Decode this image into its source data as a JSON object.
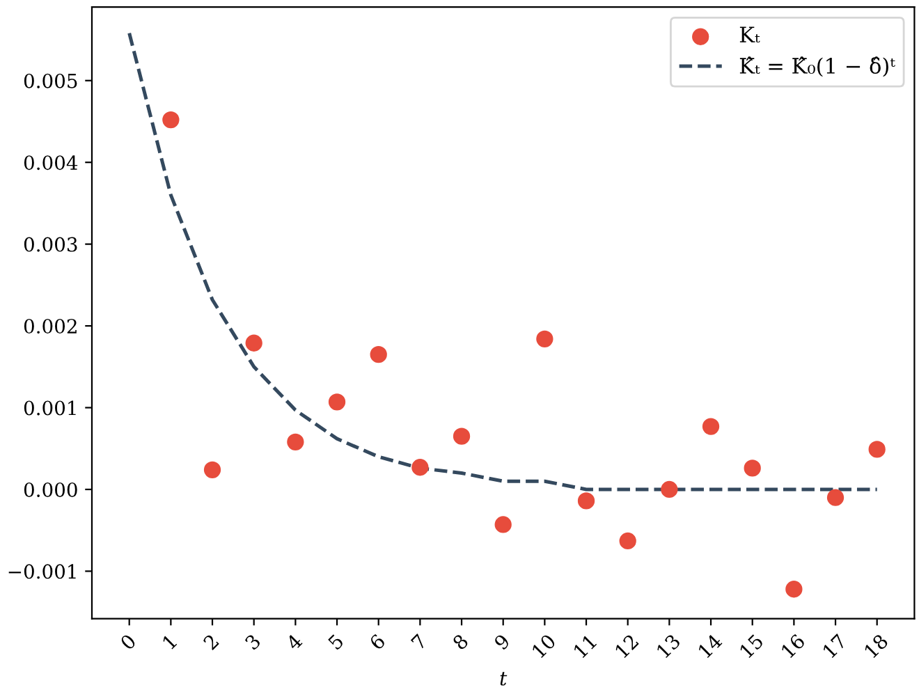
{
  "chart_data": {
    "type": "scatter",
    "xlabel": "t",
    "x": [
      1,
      2,
      3,
      4,
      5,
      6,
      7,
      8,
      9,
      10,
      11,
      12,
      13,
      14,
      15,
      16,
      17,
      18
    ],
    "series": [
      {
        "name": "Kₜ",
        "color": "#e74c3c",
        "marker": "circle",
        "values": [
          0.00452,
          0.00024,
          0.00179,
          0.00058,
          0.00107,
          0.00165,
          0.00027,
          0.00065,
          -0.00043,
          0.00184,
          -0.00014,
          -0.00063,
          0.0,
          0.00077,
          0.00026,
          -0.00122,
          -0.0001,
          0.00049
        ]
      },
      {
        "name": "K̂ₜ = K̂₀(1 − δ̂)ᵗ",
        "type": "line",
        "color": "#34495e",
        "line_style": "dashed",
        "marker": "none",
        "x": [
          0,
          1,
          2,
          3,
          4,
          5,
          6,
          7,
          8,
          9,
          10,
          11,
          12,
          13,
          14,
          15,
          16,
          17,
          18
        ],
        "values": [
          0.00558,
          0.0036,
          0.00232,
          0.0015,
          0.00097,
          0.00062,
          0.0004,
          0.00026,
          0.0002,
          0.0001,
          0.0001,
          0.0,
          0.0,
          0.0,
          0.0,
          0.0,
          0.0,
          0.0,
          0.0
        ]
      }
    ],
    "xlim": [
      -0.9,
      18.9
    ],
    "ylim": [
      -0.00158,
      0.0059
    ],
    "xticks": [
      0,
      1,
      2,
      3,
      4,
      5,
      6,
      7,
      8,
      9,
      10,
      11,
      12,
      13,
      14,
      15,
      16,
      17,
      18
    ],
    "yticks": [
      {
        "value": -0.001,
        "label": "−0.001"
      },
      {
        "value": 0,
        "label": "0.000"
      },
      {
        "value": 0.001,
        "label": "0.001"
      },
      {
        "value": 0.002,
        "label": "0.002"
      },
      {
        "value": 0.003,
        "label": "0.003"
      },
      {
        "value": 0.004,
        "label": "0.004"
      },
      {
        "value": 0.005,
        "label": "0.005"
      }
    ],
    "grid": false,
    "legend": "top right"
  }
}
